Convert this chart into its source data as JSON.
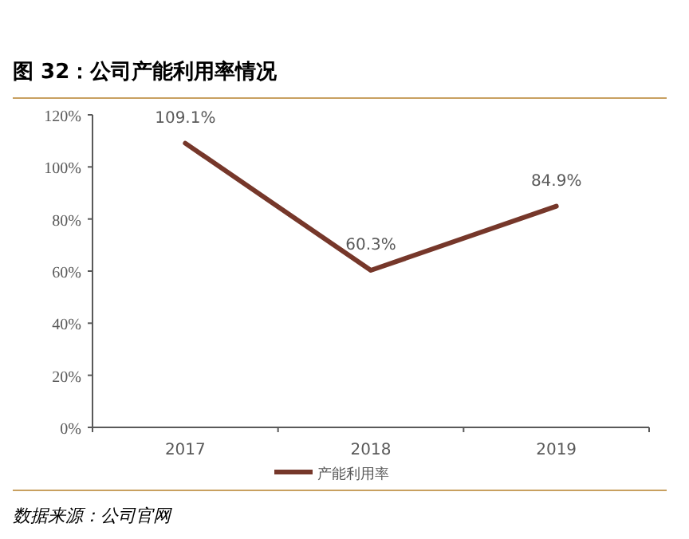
{
  "chart_data": {
    "type": "line",
    "title": "图 32：公司产能利用率情况",
    "categories": [
      "2017",
      "2018",
      "2019"
    ],
    "series": [
      {
        "name": "产能利用率",
        "color": "#76372a",
        "values": [
          109.1,
          60.3,
          84.9
        ],
        "value_labels": [
          "109.1%",
          "60.3%",
          "84.9%"
        ]
      }
    ],
    "ylim": [
      0,
      120
    ],
    "yticks": [
      {
        "value": 0,
        "label": "0%"
      },
      {
        "value": 20,
        "label": "20%"
      },
      {
        "value": 40,
        "label": "40%"
      },
      {
        "value": 60,
        "label": "60%"
      },
      {
        "value": 80,
        "label": "80%"
      },
      {
        "value": 100,
        "label": "100%"
      },
      {
        "value": 120,
        "label": "120%"
      }
    ],
    "legend": "bottom",
    "grid": false,
    "marker": "none",
    "line_style": "solid",
    "annotations": [
      "数据来源：公司官网"
    ]
  }
}
